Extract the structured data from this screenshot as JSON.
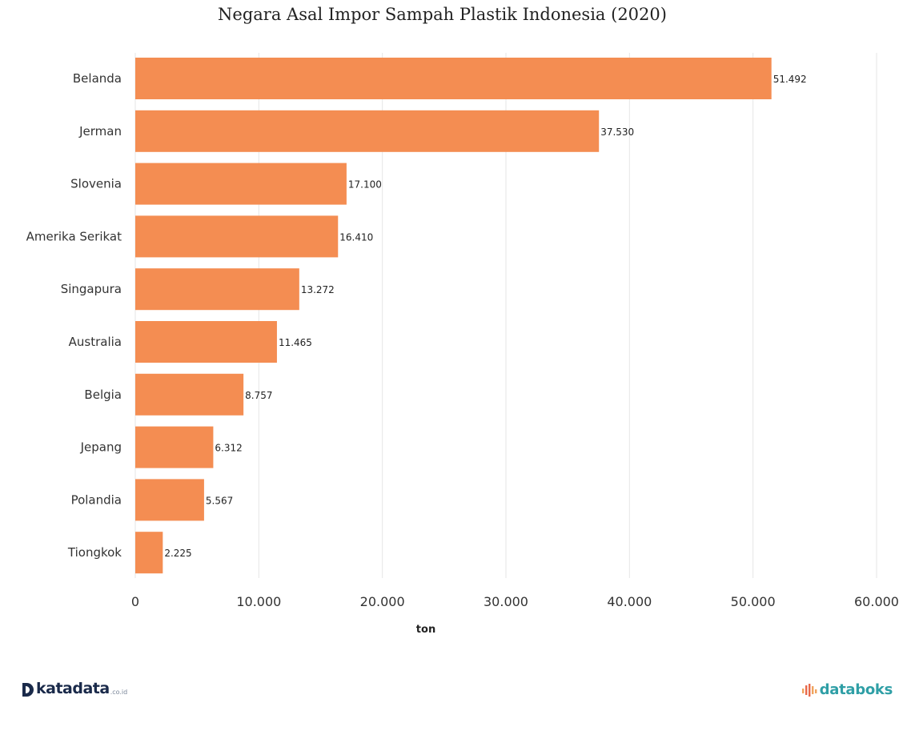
{
  "chart_data": {
    "type": "bar",
    "orientation": "horizontal",
    "title": "Negara Asal Impor Sampah Plastik Indonesia (2020)",
    "xlabel": "ton",
    "ylabel": "",
    "categories": [
      "Belanda",
      "Jerman",
      "Slovenia",
      "Amerika Serikat",
      "Singapura",
      "Australia",
      "Belgia",
      "Jepang",
      "Polandia",
      "Tiongkok"
    ],
    "values": [
      51492,
      37530,
      17100,
      16410,
      13272,
      11465,
      8757,
      6312,
      5567,
      2225
    ],
    "value_labels": [
      "51.492",
      "37.530",
      "17.100",
      "16.410",
      "13.272",
      "11.465",
      "8.757",
      "6.312",
      "5.567",
      "2.225"
    ],
    "xlim": [
      0,
      60000
    ],
    "xticks": [
      0,
      10000,
      20000,
      30000,
      40000,
      50000,
      60000
    ],
    "xtick_labels": [
      "0",
      "10.000",
      "20.000",
      "30.000",
      "40.000",
      "50.000",
      "60.000"
    ],
    "grid": true,
    "bar_color": "#f48d52"
  },
  "branding": {
    "left_name": "katadata",
    "left_suffix": ".co.id",
    "right_name": "databoks"
  }
}
